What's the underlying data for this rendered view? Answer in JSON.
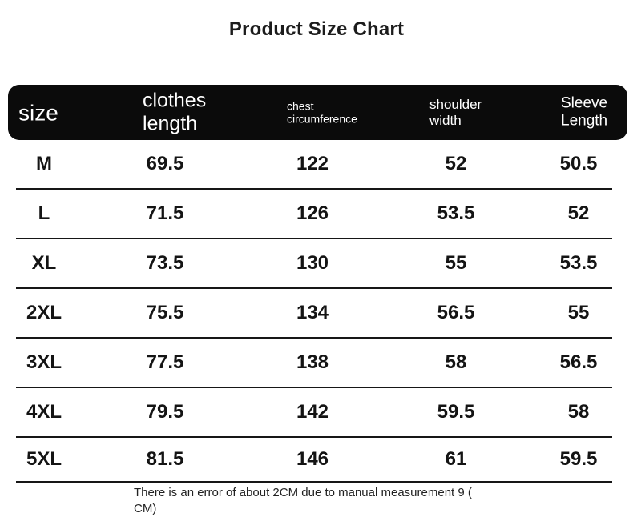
{
  "chart_data": {
    "type": "table",
    "title": "Product Size Chart",
    "columns": [
      "size",
      "clothes length",
      "chest circumference",
      "shoulder width",
      "Sleeve Length"
    ],
    "rows": [
      [
        "M",
        "69.5",
        "122",
        "52",
        "50.5"
      ],
      [
        "L",
        "71.5",
        "126",
        "53.5",
        "52"
      ],
      [
        "XL",
        "73.5",
        "130",
        "55",
        "53.5"
      ],
      [
        "2XL",
        "75.5",
        "134",
        "56.5",
        "55"
      ],
      [
        "3XL",
        "77.5",
        "138",
        "58",
        "56.5"
      ],
      [
        "4XL",
        "79.5",
        "142",
        "59.5",
        "58"
      ],
      [
        "5XL",
        "81.5",
        "146",
        "61",
        "59.5"
      ]
    ],
    "units": "CM",
    "note_lines": [
      "There is an error of about 2CM due to manual measurement 9 (",
      "CM)"
    ],
    "layout": {
      "header_style": "black rounded bar, white text",
      "grid": "horizontal row separators only"
    }
  },
  "colors": {
    "background": "#ffffff",
    "header_bg": "#0b0b0b",
    "header_text": "#ffffff",
    "body_text": "#141414",
    "separator": "#161616"
  }
}
